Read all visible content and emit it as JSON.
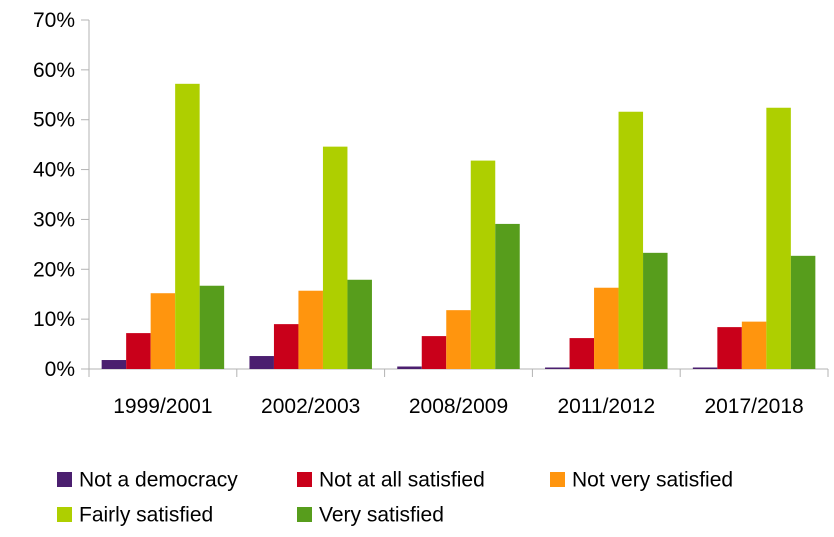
{
  "chart_data": {
    "type": "bar",
    "categories": [
      "1999/2001",
      "2002/2003",
      "2008/2009",
      "2011/2012",
      "2017/2018"
    ],
    "series": [
      {
        "name": "Not a democracy",
        "color": "#4b1f6f",
        "values": [
          1.8,
          2.6,
          0.5,
          0.3,
          0.3
        ]
      },
      {
        "name": "Not at all satisfied",
        "color": "#c9001a",
        "values": [
          7.2,
          9.0,
          6.6,
          6.2,
          8.4
        ]
      },
      {
        "name": "Not very satisfied",
        "color": "#ff950e",
        "values": [
          15.2,
          15.7,
          11.8,
          16.3,
          9.5
        ]
      },
      {
        "name": "Fairly satisfied",
        "color": "#aecf00",
        "values": [
          57.2,
          44.6,
          41.8,
          51.6,
          52.4
        ]
      },
      {
        "name": "Very satisfied",
        "color": "#579d1c",
        "values": [
          16.7,
          17.9,
          29.1,
          23.3,
          22.7
        ]
      }
    ],
    "yticks": [
      "0%",
      "10%",
      "20%",
      "30%",
      "40%",
      "50%",
      "60%",
      "70%"
    ],
    "ylim": [
      0,
      70
    ],
    "grid": false,
    "legend": "bottom"
  }
}
